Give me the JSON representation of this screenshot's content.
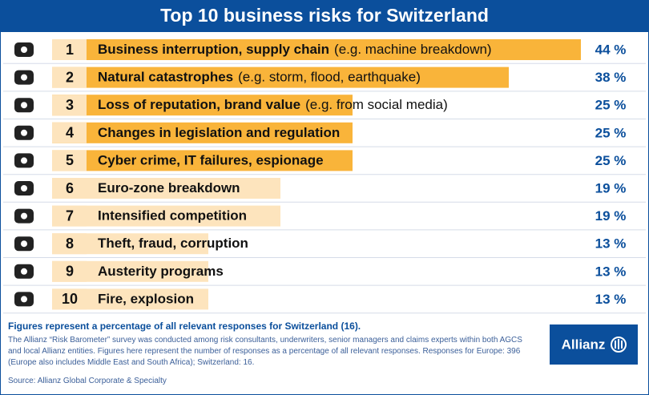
{
  "chart_data": {
    "type": "bar",
    "title": "Top 10 business risks for Switzerland",
    "ranks": [
      1,
      2,
      3,
      4,
      5,
      6,
      7,
      8,
      9,
      10
    ],
    "categories": [
      "Business interruption, supply chain",
      "Natural catastrophes",
      "Loss of reputation, brand value",
      "Changes in legislation and regulation",
      "Cyber crime, IT failures, espionage",
      "Euro-zone breakdown",
      "Intensified competition",
      "Theft, fraud, corruption",
      "Austerity programs",
      "Fire, explosion"
    ],
    "details": [
      "(e.g. machine breakdown)",
      "(e.g. storm, flood, earthquake)",
      "(e.g. from social media)",
      null,
      null,
      null,
      null,
      null,
      null,
      null
    ],
    "values": [
      44,
      38,
      25,
      25,
      25,
      19,
      19,
      13,
      13,
      13
    ],
    "value_labels": [
      "44 %",
      "38 %",
      "25 %",
      "25 %",
      "25 %",
      "19 %",
      "19 %",
      "13 %",
      "13 %",
      "13 %"
    ],
    "colors": [
      "#f9b43a",
      "#f9b43a",
      "#f9b43a",
      "#f9b43a",
      "#f9b43a",
      "#fde4bd",
      "#fde4bd",
      "#fde4bd",
      "#fde4bd",
      "#fde4bd"
    ],
    "footnote": "Figures represent a percentage of all relevant responses for Switzerland (16).",
    "note_lines": [
      "The Allianz “Risk Barometer” survey was conducted among risk consultants, underwriters, senior managers and claims experts within both AGCS",
      "and local Allianz entities. Figures here represent the number of responses as a percentage of all relevant responses. Responses for Europe: 396",
      "(Europe also includes Middle East and South Africa); Switzerland: 16."
    ],
    "source": "Source: Allianz Global Corporate & Specialty",
    "logo": "Allianz"
  }
}
